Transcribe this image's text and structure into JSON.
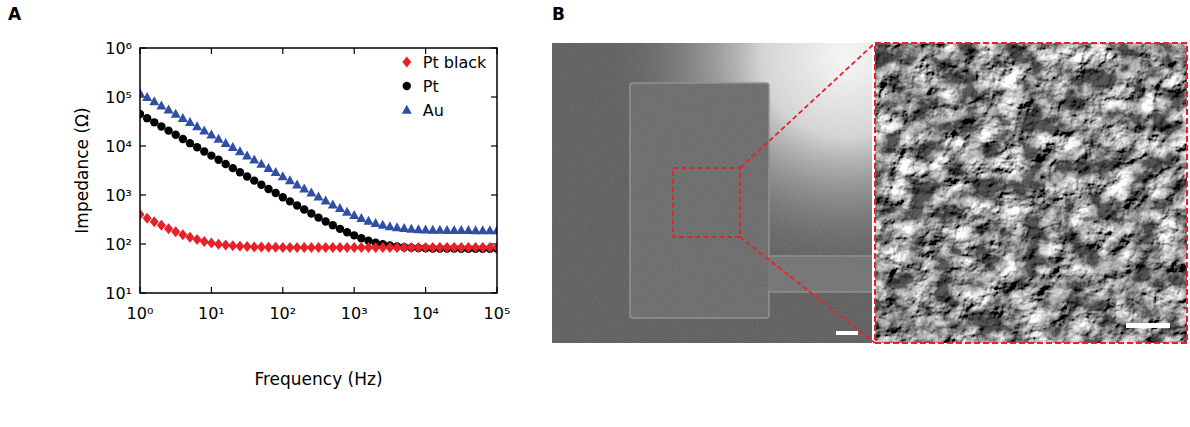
{
  "chart_data": {
    "type": "scatter",
    "panel_label": "A",
    "x_label": "Frequency (Hz)",
    "y_label": "Impedance (Ω)",
    "log": true,
    "grid": false,
    "legend": "upper-right",
    "xlim": [
      1,
      100000
    ],
    "ylim": [
      10,
      1000000
    ],
    "xticks": [
      {
        "value": 1,
        "label": "10⁰"
      },
      {
        "value": 10,
        "label": "10¹"
      },
      {
        "value": 100,
        "label": "10²"
      },
      {
        "value": 1000,
        "label": "10³"
      },
      {
        "value": 10000,
        "label": "10⁴"
      },
      {
        "value": 100000,
        "label": "10⁵"
      }
    ],
    "yticks": [
      {
        "value": 10,
        "label": "10¹"
      },
      {
        "value": 100,
        "label": "10²"
      },
      {
        "value": 1000,
        "label": "10³"
      },
      {
        "value": 10000,
        "label": "10⁴"
      },
      {
        "value": 100000,
        "label": "10⁵"
      },
      {
        "value": 1000000,
        "label": "10⁶"
      }
    ],
    "x": [
      1,
      1.259,
      1.585,
      1.995,
      2.512,
      3.162,
      3.981,
      5.012,
      6.31,
      7.943,
      10,
      12.59,
      15.85,
      19.95,
      25.12,
      31.62,
      39.81,
      50.12,
      63.1,
      79.43,
      100,
      125.9,
      158.5,
      199.5,
      251.2,
      316.2,
      398.1,
      501.2,
      631,
      794.3,
      1000,
      1259,
      1585,
      1995,
      2512,
      3162,
      3981,
      5012,
      6310,
      7943,
      10000,
      12590,
      15850,
      19950,
      25120,
      31620,
      39810,
      50120,
      63100,
      79430,
      100000
    ],
    "series": [
      {
        "name": "Pt black",
        "color": "#e8202a",
        "marker": "diamond",
        "values": [
          399,
          335,
          283,
          240,
          205,
          177,
          154,
          137,
          123,
          113,
          105,
          99,
          95,
          92,
          90,
          89,
          87,
          87,
          86,
          86,
          85,
          85,
          85,
          85,
          85,
          85,
          85,
          85,
          85,
          85,
          85,
          85,
          85,
          85,
          85,
          85,
          85,
          85,
          85,
          85,
          85,
          85,
          85,
          85,
          85,
          85,
          85,
          85,
          85,
          85,
          85
        ]
      },
      {
        "name": "Pt",
        "color": "#000000",
        "marker": "circle",
        "values": [
          45000,
          37000,
          30420,
          25010,
          20570,
          16910,
          13910,
          11430,
          9400,
          7730,
          6356,
          5226,
          4297,
          3533,
          2905,
          2390,
          1966,
          1617,
          1330,
          1095,
          902,
          742,
          612,
          505,
          418,
          346,
          288,
          242,
          204,
          174,
          150,
          131,
          117,
          106,
          99,
          93,
          89,
          86,
          84,
          83,
          82,
          81,
          81,
          81,
          81,
          80,
          80,
          80,
          80,
          80,
          80
        ]
      },
      {
        "name": "Au",
        "color": "#2e4fa3",
        "marker": "triangle",
        "values": [
          120000,
          98670,
          81120,
          66700,
          54840,
          45090,
          37080,
          30490,
          25070,
          20610,
          16950,
          13940,
          11460,
          9424,
          7749,
          6371,
          5239,
          4307,
          3542,
          2918,
          2402,
          1978,
          1630,
          1345,
          1110,
          920,
          764,
          637,
          535,
          453,
          388,
          337,
          297,
          267,
          245,
          229,
          217,
          209,
          203,
          199,
          196,
          194,
          193,
          192,
          191,
          191,
          191,
          190,
          190,
          190,
          190
        ]
      }
    ]
  },
  "panel_b": {
    "label": "B"
  }
}
